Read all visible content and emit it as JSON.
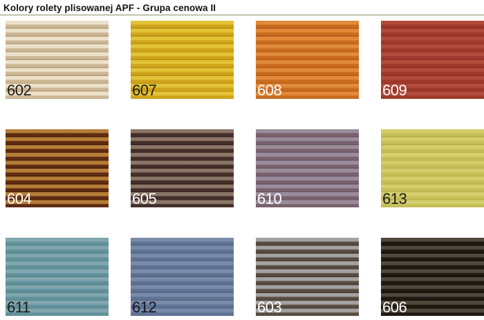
{
  "page": {
    "title": "Kolory rolety plisowanej APF - Grupa cenowa II"
  },
  "theme": {
    "divider": "#9fab85"
  },
  "swatches": [
    {
      "code": "602",
      "colors": {
        "light": "#ece2cb",
        "dark": "#cdb694",
        "edge": "#b29a73",
        "label": "#1c1c1c"
      }
    },
    {
      "code": "607",
      "colors": {
        "light": "#e3c236",
        "dark": "#cfa41b",
        "edge": "#b38d10",
        "label": "#1c1c1c"
      }
    },
    {
      "code": "608",
      "colors": {
        "light": "#e08a3a",
        "dark": "#ca6c1f",
        "edge": "#b05a15",
        "label": "#ffffff"
      }
    },
    {
      "code": "609",
      "colors": {
        "light": "#b14c3b",
        "dark": "#9f392b",
        "edge": "#8c3023",
        "label": "#ffffff"
      }
    },
    {
      "code": "604",
      "colors": {
        "light": "#b57d38",
        "dark": "#602c12",
        "edge": "#4c2009",
        "label": "#ffffff"
      }
    },
    {
      "code": "605",
      "colors": {
        "light": "#8b7566",
        "dark": "#44302a",
        "edge": "#352521",
        "label": "#ffffff"
      }
    },
    {
      "code": "610",
      "colors": {
        "light": "#9a8c9b",
        "dark": "#7a626d",
        "edge": "#6b5460",
        "label": "#ffffff"
      }
    },
    {
      "code": "613",
      "colors": {
        "light": "#d4ce6d",
        "dark": "#c5bf57",
        "edge": "#b6af49",
        "label": "#1c1c1c"
      }
    },
    {
      "code": "611",
      "colors": {
        "light": "#80a7ad",
        "dark": "#61929b",
        "edge": "#55838c",
        "label": "#1c1c1c"
      }
    },
    {
      "code": "612",
      "colors": {
        "light": "#7a8ba9",
        "dark": "#5e7294",
        "edge": "#526486",
        "label": "#11131f"
      }
    },
    {
      "code": "603",
      "colors": {
        "light": "#a2a2a0",
        "dark": "#594d41",
        "edge": "#443930",
        "label": "#ffffff"
      }
    },
    {
      "code": "606",
      "colors": {
        "light": "#4f493c",
        "dark": "#1f1911",
        "edge": "#120e08",
        "label": "#ffffff"
      }
    }
  ]
}
